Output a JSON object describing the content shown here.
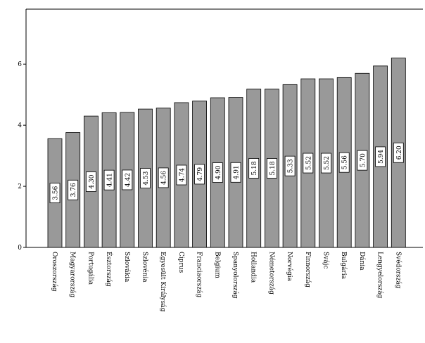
{
  "chart_data": {
    "type": "bar",
    "title": "",
    "xlabel": "",
    "ylabel": "",
    "ylim": [
      0,
      7.8
    ],
    "yticks": [
      0,
      2,
      4,
      6
    ],
    "ytick_labels": [
      "0",
      "2",
      "4",
      "6"
    ],
    "grid": false,
    "legend": "none",
    "bar_color": "#999999",
    "categories": [
      "Oroszország",
      "Magyarország",
      "Portugália",
      "Észtország",
      "Szlovákia",
      "Szlovénia",
      "Egyesült Királyság",
      "Ciprus",
      "Franciaország",
      "Belgium",
      "Spanyolország",
      "Hollandia",
      "Németország",
      "Norvégia",
      "Finnország",
      "Svájc",
      "Bulgária",
      "Dánia",
      "Lengyelország",
      "Svédország"
    ],
    "values": [
      3.56,
      3.76,
      4.3,
      4.41,
      4.42,
      4.53,
      4.56,
      4.74,
      4.79,
      4.9,
      4.91,
      5.18,
      5.18,
      5.33,
      5.52,
      5.52,
      5.56,
      5.7,
      5.94,
      6.2
    ],
    "data_labels": [
      "3.56",
      "3.76",
      "4.30",
      "4.41",
      "4.42",
      "4.53",
      "4.56",
      "4.74",
      "4.79",
      "4.90",
      "4.91",
      "5.18",
      "5.18",
      "5.33",
      "5.52",
      "5.52",
      "5.56",
      "5.70",
      "5.94",
      "6.20"
    ]
  }
}
